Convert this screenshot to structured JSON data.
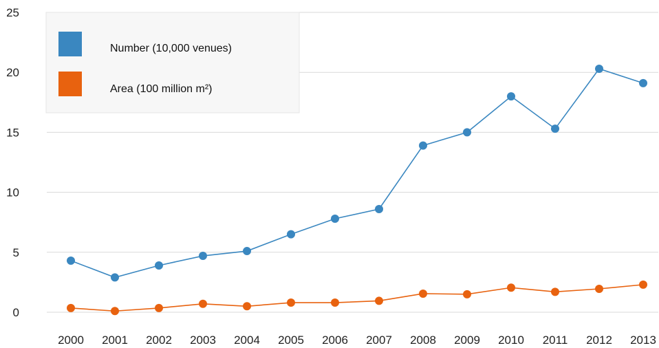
{
  "chart_data": {
    "type": "line",
    "title": "",
    "xlabel": "",
    "ylabel": "",
    "x": [
      "2000",
      "2001",
      "2002",
      "2003",
      "2004",
      "2005",
      "2006",
      "2007",
      "2008",
      "2009",
      "2010",
      "2011",
      "2012",
      "2013"
    ],
    "ylim": [
      0,
      25
    ],
    "yticks": [
      "0",
      "5",
      "10",
      "15",
      "20",
      "25"
    ],
    "grid": true,
    "legend_position": "top-left",
    "series": [
      {
        "name": "Number (10,000 venues)",
        "color": "#3a87c0",
        "values": [
          4.3,
          2.9,
          3.9,
          4.7,
          5.1,
          6.5,
          7.8,
          8.6,
          13.9,
          15.0,
          18.0,
          15.3,
          20.3,
          19.1
        ]
      },
      {
        "name": "Area (100 million m²)",
        "color": "#e8620f",
        "values": [
          0.35,
          0.1,
          0.35,
          0.7,
          0.5,
          0.8,
          0.8,
          0.95,
          1.55,
          1.5,
          2.05,
          1.7,
          1.95,
          2.3
        ]
      }
    ]
  }
}
